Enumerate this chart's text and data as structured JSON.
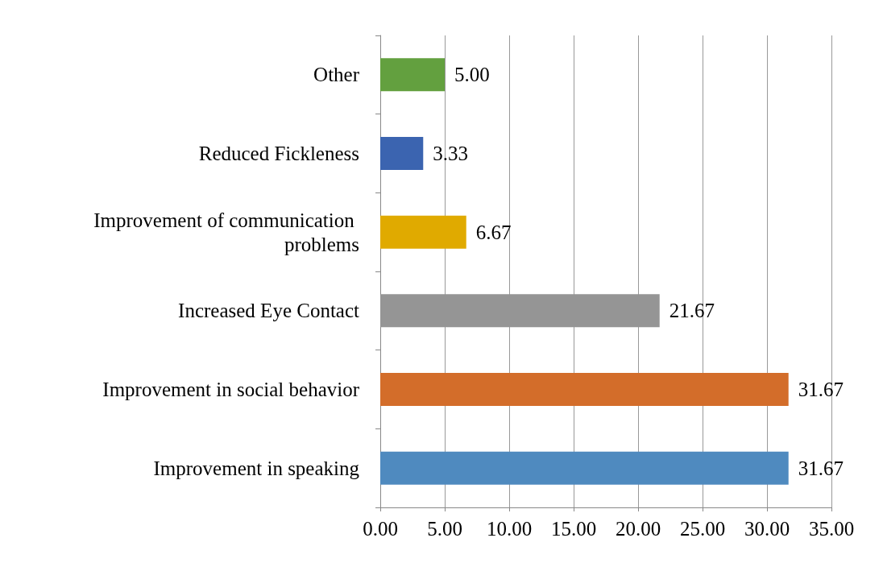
{
  "chart_data": {
    "type": "bar",
    "orientation": "horizontal",
    "categories": [
      "Other",
      "Reduced Fickleness",
      "Improvement of communication problems",
      "Increased Eye Contact",
      "Improvement in social behavior",
      "Improvement in speaking"
    ],
    "values": [
      5.0,
      3.33,
      6.67,
      21.67,
      31.67,
      31.67
    ],
    "value_labels": [
      "5.00",
      "3.33",
      "6.67",
      "21.67",
      "31.67",
      "31.67"
    ],
    "colors": [
      "#63a03f",
      "#3b64b0",
      "#e0aa00",
      "#959595",
      "#d36d2a",
      "#4f8abf"
    ],
    "xlim": [
      0,
      35
    ],
    "xticks": [
      {
        "value": 0,
        "label": "0.00"
      },
      {
        "value": 5,
        "label": "5.00"
      },
      {
        "value": 10,
        "label": "10.00"
      },
      {
        "value": 15,
        "label": "15.00"
      },
      {
        "value": 20,
        "label": "20.00"
      },
      {
        "value": 25,
        "label": "25.00"
      },
      {
        "value": 30,
        "label": "30.00"
      },
      {
        "value": 35,
        "label": "35.00"
      }
    ],
    "grid": "x"
  }
}
